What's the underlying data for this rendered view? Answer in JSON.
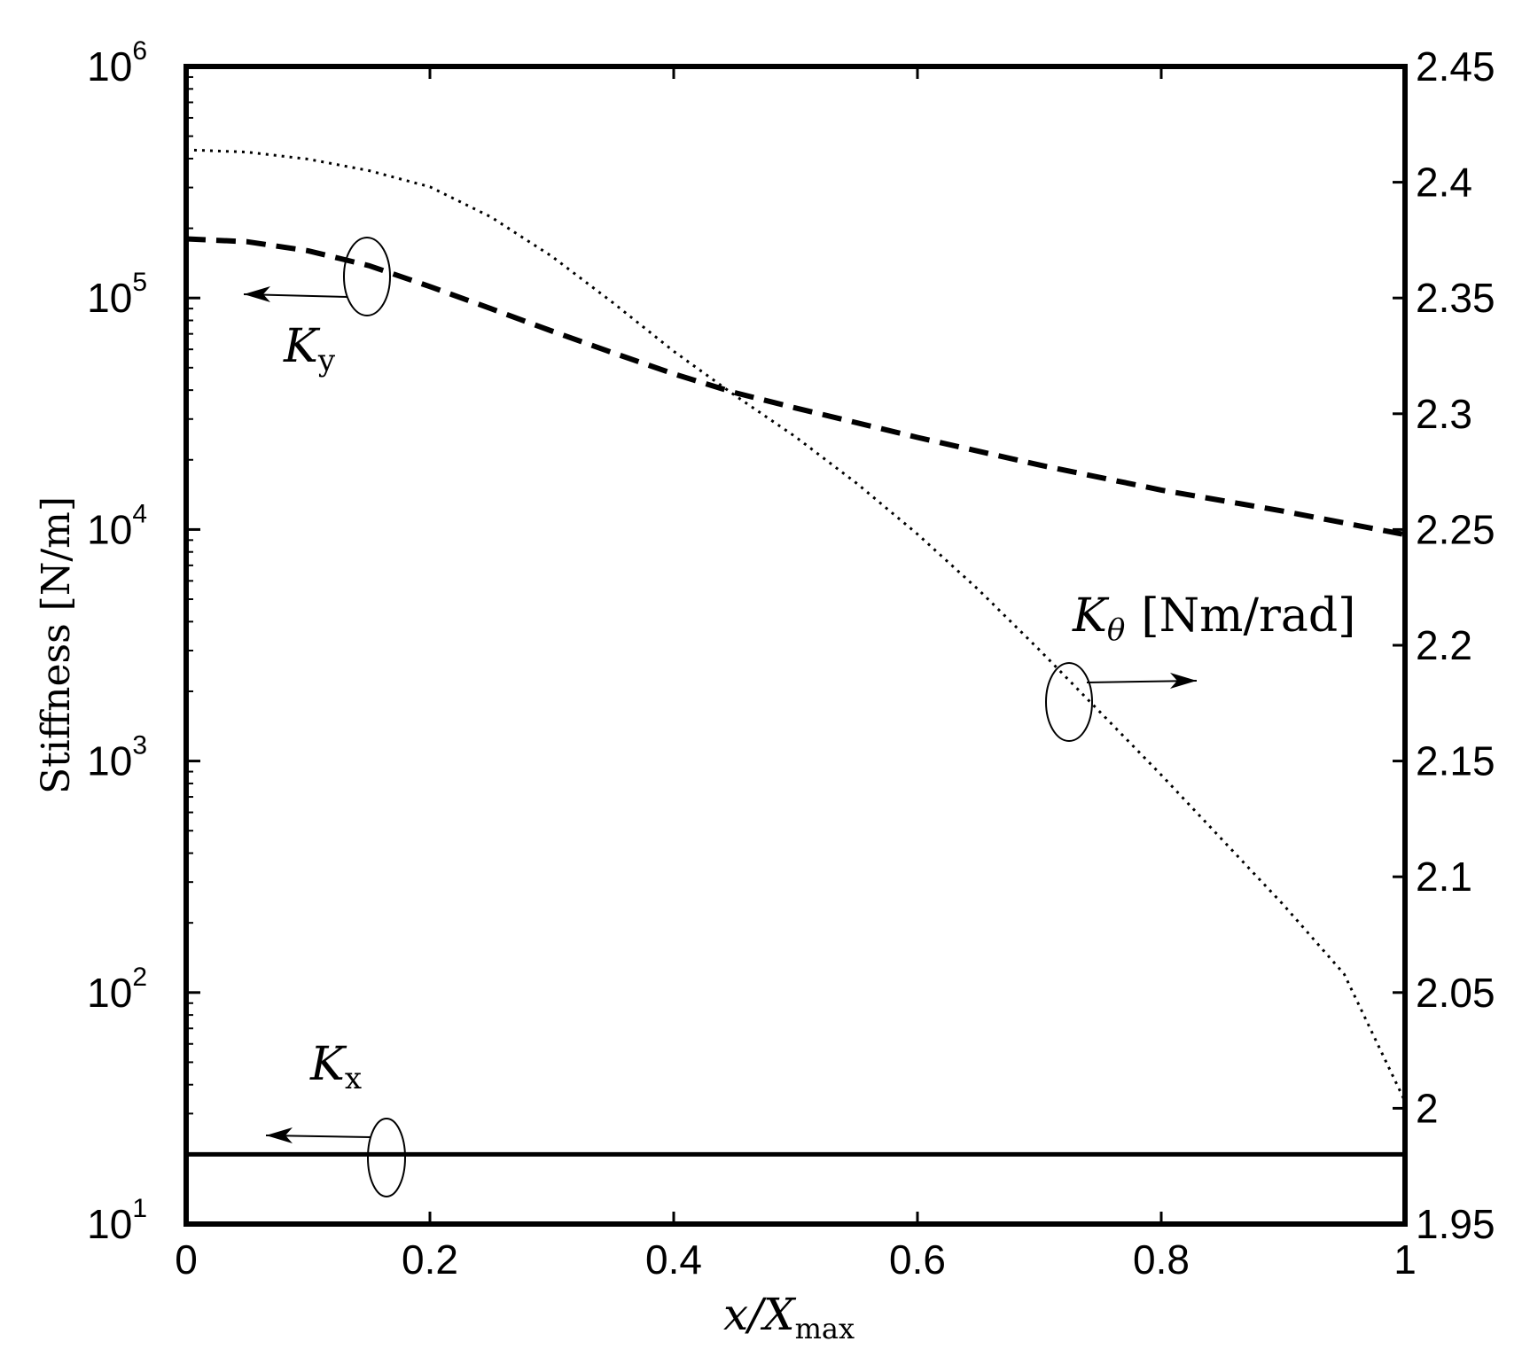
{
  "chart_data": {
    "type": "line",
    "xlabel": {
      "base": "x/X",
      "sub": "max"
    },
    "ylabel": "Stiffness [N/m]",
    "xlim": [
      0,
      1
    ],
    "ylim": [
      10,
      1000000
    ],
    "yscale": "log",
    "y2lim": [
      1.95,
      2.45
    ],
    "x_ticks": [
      "0",
      "0.2",
      "0.4",
      "0.6",
      "0.8",
      "1"
    ],
    "y_ticks": [
      {
        "value": 10,
        "exp": "1"
      },
      {
        "value": 100,
        "exp": "2"
      },
      {
        "value": 1000,
        "exp": "3"
      },
      {
        "value": 10000,
        "exp": "4"
      },
      {
        "value": 100000,
        "exp": "5"
      },
      {
        "value": 1000000,
        "exp": "6"
      }
    ],
    "y2_ticks": [
      "1.95",
      "2",
      "2.05",
      "2.1",
      "2.15",
      "2.2",
      "2.25",
      "2.3",
      "2.35",
      "2.4",
      "2.45"
    ],
    "series": [
      {
        "name": "Kx",
        "axis": "left",
        "style": "solid",
        "x": [
          0,
          1
        ],
        "y": [
          20,
          20
        ]
      },
      {
        "name": "Ky",
        "axis": "left",
        "style": "dashed",
        "x": [
          0,
          0.05,
          0.1,
          0.15,
          0.2,
          0.25,
          0.3,
          0.35,
          0.4,
          0.45,
          0.5,
          0.6,
          0.7,
          0.8,
          0.9,
          1.0
        ],
        "y": [
          180000,
          175000,
          160000,
          138000,
          112000,
          90000,
          72000,
          58000,
          47000,
          39000,
          33500,
          25000,
          19000,
          14800,
          12000,
          9500
        ]
      },
      {
        "name": "Ktheta",
        "axis": "right",
        "style": "dotted",
        "x": [
          0,
          0.05,
          0.1,
          0.15,
          0.2,
          0.25,
          0.3,
          0.35,
          0.4,
          0.45,
          0.5,
          0.55,
          0.6,
          0.65,
          0.7,
          0.75,
          0.8,
          0.85,
          0.9,
          0.95,
          1.0
        ],
        "y": [
          2.414,
          2.413,
          2.41,
          2.405,
          2.398,
          2.385,
          2.368,
          2.348,
          2.327,
          2.308,
          2.29,
          2.27,
          2.248,
          2.224,
          2.198,
          2.171,
          2.144,
          2.116,
          2.088,
          2.058,
          2.003
        ]
      }
    ],
    "annotations": [
      {
        "label": "K",
        "sub": "x"
      },
      {
        "label": "K",
        "sub": "y"
      },
      {
        "label": "K",
        "sub": "θ",
        "suffix": "[Nm/rad]"
      }
    ]
  }
}
